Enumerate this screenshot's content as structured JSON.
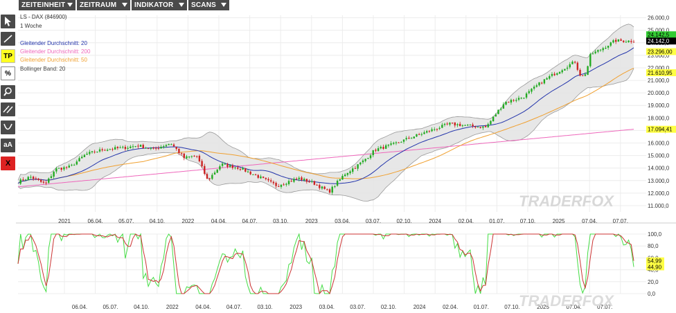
{
  "menu": {
    "items": [
      {
        "label": "ZEITEINHEIT"
      },
      {
        "label": "ZEITRAUM"
      },
      {
        "label": "INDIKATOR"
      },
      {
        "label": "SCANS"
      }
    ]
  },
  "toolbar": {
    "tp_label": "TP",
    "percent_label": "%",
    "text_label": "aA",
    "delete_label": "X"
  },
  "legend": {
    "symbol": "LS - DAX (846900)",
    "interval": "1 Woche",
    "ma20": "Gleitender Durchschnitt: 20",
    "ma200": "Gleitender Durchschnitt: 200",
    "ma50": "Gleitender Durchschnitt: 50",
    "bollinger": "Bollinger Band: 20"
  },
  "watermark": "TRADERFOX",
  "colors": {
    "up": "#22aa22",
    "down": "#cc2222",
    "ma20": "#2233aa",
    "ma50": "#f0a030",
    "ma200": "#ee66bb",
    "band": "#999999",
    "bandFill": "#e4e4e4",
    "stochK": "#44dd44",
    "stochD": "#cc3333",
    "lastPrice": "#000000",
    "labelGreen": "#33cc33",
    "labelYellow": "#ffff44"
  },
  "chart_data": [
    {
      "type": "candlestick",
      "interval": "1 Woche",
      "ylim": [
        10500,
        26200
      ],
      "yticks": [
        11000,
        12000,
        13000,
        14000,
        15000,
        16000,
        17000,
        18000,
        19000,
        20000,
        21000,
        22000,
        23000,
        24000,
        25000,
        26000
      ],
      "ytick_labels": [
        "11.000,0",
        "12.000,0",
        "13.000,0",
        "14.000,0",
        "15.000,0",
        "16.000,0",
        "17.000,0",
        "18.000,0",
        "19.000,0",
        "20.000,0",
        "21.000,0",
        "22.000,0",
        "23.000,0",
        "24.000,0",
        "25.000,0",
        "26.000,0"
      ],
      "xlabels": [
        {
          "t": 0.1,
          "label": "2021"
        },
        {
          "t": 0.18,
          "label": "06.04."
        },
        {
          "t": 0.27,
          "label": "05.07."
        },
        {
          "t": 0.37,
          "label": "04.10."
        },
        {
          "t": 0.46,
          "label": "2022"
        },
        {
          "t": 0.56,
          "label": "04.04."
        },
        {
          "t": 0.66,
          "label": "04.07."
        },
        {
          "t": 0.75,
          "label": "03.10."
        },
        {
          "t": 0.84,
          "label": "2023"
        }
      ],
      "x_range": [
        "2020-11",
        "2025-07"
      ],
      "anchors": [
        [
          0.0,
          12900
        ],
        [
          0.02,
          13300
        ],
        [
          0.045,
          12700
        ],
        [
          0.06,
          13900
        ],
        [
          0.085,
          14100
        ],
        [
          0.11,
          15100
        ],
        [
          0.14,
          15500
        ],
        [
          0.17,
          15600
        ],
        [
          0.195,
          15800
        ],
        [
          0.22,
          15500
        ],
        [
          0.248,
          16000
        ],
        [
          0.27,
          14800
        ],
        [
          0.29,
          15000
        ],
        [
          0.308,
          13000
        ],
        [
          0.33,
          14300
        ],
        [
          0.36,
          14000
        ],
        [
          0.395,
          13200
        ],
        [
          0.42,
          12600
        ],
        [
          0.455,
          13200
        ],
        [
          0.48,
          12800
        ],
        [
          0.505,
          12100
        ],
        [
          0.53,
          13500
        ],
        [
          0.56,
          14500
        ],
        [
          0.58,
          15300
        ],
        [
          0.61,
          15500
        ],
        [
          0.64,
          15800
        ],
        [
          0.67,
          16000
        ],
        [
          0.7,
          16200
        ],
        [
          0.73,
          15700
        ],
        [
          0.76,
          15200
        ],
        [
          0.79,
          16800
        ],
        [
          0.82,
          16800
        ],
        [
          0.85,
          17600
        ],
        [
          0.88,
          18100
        ],
        [
          0.91,
          18500
        ],
        [
          0.94,
          18700
        ],
        [
          0.97,
          19100
        ],
        [
          1.0,
          18600
        ]
      ],
      "series": [
        {
          "name": "Gleitender Durchschnitt: 20",
          "last": 23296.0
        },
        {
          "name": "Gleitender Durchschnitt: 200",
          "last": 17094.41
        },
        {
          "name": "Gleitender Durchschnitt: 50",
          "last": 21610.95
        },
        {
          "name": "Bollinger Band: 20",
          "upper_last": 24142.5
        }
      ],
      "price_labels": [
        {
          "value": 24142.5,
          "text": "24.142,5",
          "style": "green"
        },
        {
          "value": 24142.0,
          "text": "24.142,0",
          "style": "black"
        },
        {
          "value": 23296.0,
          "text": "23.296,00",
          "style": "yellow"
        },
        {
          "value": 21610.95,
          "text": "21.610,95",
          "style": "yellow"
        },
        {
          "value": 17094.41,
          "text": "17.094,41",
          "style": "yellow"
        }
      ],
      "price_xlabels_top": [
        "2021",
        "06.04.",
        "05.07.",
        "04.10.",
        "2022",
        "04.04.",
        "04.07.",
        "03.10.",
        "2023",
        "03.04.",
        "03.07.",
        "02.10.",
        "2024",
        "02.04.",
        "01.07.",
        "07.10.",
        "2025",
        "07.04.",
        "07.07."
      ]
    },
    {
      "type": "line",
      "indicator": "Stochastik",
      "ylim": [
        0,
        100
      ],
      "yticks": [
        0,
        20,
        40,
        60,
        80,
        100
      ],
      "ytick_labels": [
        "0,0",
        "20,0",
        "40,0",
        "60,0",
        "80,0",
        "100,0"
      ],
      "series": [
        {
          "name": "%K",
          "last": 44.9
        },
        {
          "name": "%D",
          "last": 54.99
        }
      ],
      "value_labels": [
        {
          "value": 54.99,
          "text": "54,99"
        },
        {
          "value": 44.9,
          "text": "44,90"
        }
      ],
      "xlabels": [
        "06.04.",
        "05.07.",
        "04.10.",
        "2022",
        "04.04.",
        "04.07.",
        "03.10.",
        "2023",
        "03.04.",
        "03.07.",
        "02.10.",
        "2024",
        "02.04.",
        "01.07.",
        "07.10.",
        "2025",
        "07.04.",
        "07.07."
      ]
    }
  ]
}
